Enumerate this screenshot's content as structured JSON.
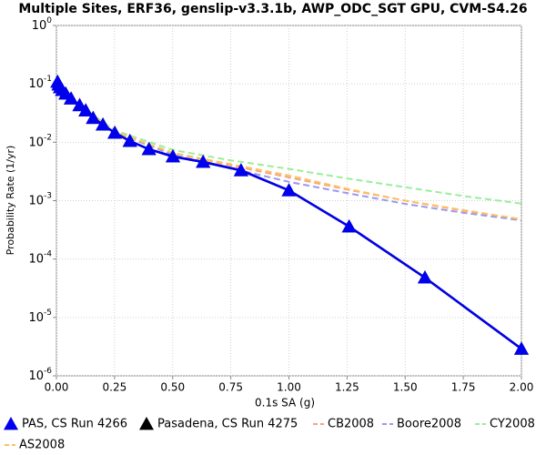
{
  "chart_data": {
    "type": "line",
    "title": "Multiple Sites, ERF36, genslip-v3.3.1b, AWP_ODC_SGT GPU, CVM-S4.26",
    "x_label": "0.1s SA (g)",
    "y_label": "Probability Rate (1/yr)",
    "xlim": [
      0,
      2
    ],
    "xticks": [
      {
        "value": 0,
        "label": "0.00"
      },
      0.25,
      {
        "value": 0.5,
        "label": "0.50"
      },
      0.75,
      {
        "value": 1,
        "label": "1.00"
      },
      1.25,
      {
        "value": 1.5,
        "label": "1.50"
      },
      1.75,
      {
        "value": 2,
        "label": "2.00"
      }
    ],
    "ylim": [
      1e-06,
      1
    ],
    "yticks": [
      {
        "value": 1,
        "label": "10",
        "exponent": "0"
      },
      {
        "value": 0.1,
        "label": "10",
        "exponent": "-1"
      },
      {
        "value": 0.01,
        "label": "10",
        "exponent": "-2"
      },
      {
        "value": 0.001,
        "label": "10",
        "exponent": "-3"
      },
      {
        "value": 0.0001,
        "label": "10",
        "exponent": "-4"
      },
      {
        "value": 1e-05,
        "label": "10",
        "exponent": "-5"
      },
      {
        "value": 1e-06,
        "label": "10",
        "exponent": "-6"
      }
    ],
    "y_log": true,
    "grid": true,
    "legend": "bottom",
    "series": [
      {
        "name": "Pasadena, CS Run 4275",
        "color": "#000000",
        "style": "solid",
        "marker": "triangle",
        "x": [
          0.005,
          0.01,
          0.016,
          0.025,
          0.04,
          0.063,
          0.1,
          0.126,
          0.158,
          0.2,
          0.251,
          0.316,
          0.398,
          0.501,
          0.631,
          0.794,
          1.0,
          1.259,
          1.585,
          2.0
        ],
        "values": [
          0.108,
          0.097,
          0.087,
          0.078,
          0.068,
          0.056,
          0.043,
          0.035,
          0.026,
          0.02,
          0.0145,
          0.0105,
          0.0076,
          0.0057,
          0.0046,
          0.0033,
          0.0015,
          0.00036,
          4.8e-05,
          2.9e-06
        ]
      },
      {
        "name": "PAS, CS Run 4266",
        "color": "#0000ee",
        "style": "solid",
        "marker": "triangle",
        "x": [
          0.005,
          0.01,
          0.016,
          0.025,
          0.04,
          0.063,
          0.1,
          0.126,
          0.158,
          0.2,
          0.251,
          0.316,
          0.398,
          0.501,
          0.631,
          0.794,
          1.0,
          1.259,
          1.585,
          2.0
        ],
        "values": [
          0.108,
          0.097,
          0.087,
          0.078,
          0.068,
          0.056,
          0.043,
          0.035,
          0.026,
          0.02,
          0.0145,
          0.0105,
          0.0076,
          0.0057,
          0.0046,
          0.0033,
          0.0015,
          0.00036,
          4.8e-05,
          2.9e-06
        ]
      },
      {
        "name": "CB2008",
        "color": "#f4a582",
        "style": "dashed",
        "marker": "none",
        "x": [
          0.1,
          0.25,
          0.5,
          0.75,
          1.0,
          1.25,
          1.5,
          1.75,
          2.0
        ],
        "values": [
          0.043,
          0.015,
          0.0066,
          0.004,
          0.0025,
          0.00155,
          0.001,
          0.00067,
          0.00048
        ]
      },
      {
        "name": "Boore2008",
        "color": "#9999ee",
        "style": "dashed",
        "marker": "none",
        "x": [
          0.1,
          0.25,
          0.5,
          0.75,
          1.0,
          1.25,
          1.5,
          1.75,
          2.0
        ],
        "values": [
          0.043,
          0.015,
          0.0061,
          0.0036,
          0.0021,
          0.00135,
          0.00088,
          0.00062,
          0.00046
        ]
      },
      {
        "name": "CY2008",
        "color": "#99ee99",
        "style": "dashed",
        "marker": "none",
        "x": [
          0.1,
          0.25,
          0.5,
          0.75,
          1.0,
          1.25,
          1.5,
          1.75,
          2.0
        ],
        "values": [
          0.043,
          0.016,
          0.0074,
          0.0049,
          0.0035,
          0.0024,
          0.0017,
          0.0012,
          0.00089
        ]
      },
      {
        "name": "AS2008",
        "color": "#ffc060",
        "style": "dashed",
        "marker": "none",
        "x": [
          0.1,
          0.25,
          0.5,
          0.75,
          1.0,
          1.25,
          1.5,
          1.75,
          2.0
        ],
        "values": [
          0.043,
          0.015,
          0.0066,
          0.0042,
          0.0027,
          0.0016,
          0.001,
          0.00069,
          0.00048
        ]
      }
    ]
  }
}
